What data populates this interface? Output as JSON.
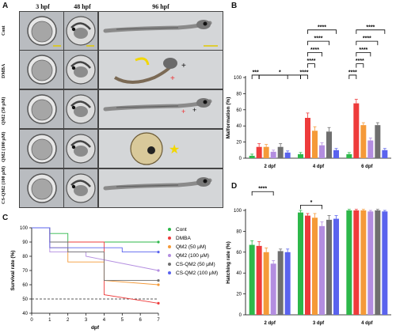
{
  "panelA": {
    "letter": "A",
    "columns": [
      "3 hpf",
      "48 hpf",
      "96 hpf"
    ],
    "rows": [
      "Cont",
      "DMBA",
      "QM2 (50 μM)",
      "QM2 (100 μM)",
      "CS-QM2 (100 μM)"
    ]
  },
  "panelB": {
    "letter": "B",
    "ylabel": "Malformation (%)",
    "yticks": [
      "0",
      "20",
      "40",
      "60",
      "80",
      "100"
    ],
    "ylim": [
      0,
      100
    ],
    "groups": [
      "2 dpf",
      "4 dpf",
      "6 dpf"
    ],
    "colors": [
      "#2db84a",
      "#ee3b3b",
      "#f59a38",
      "#b38de0",
      "#6f6f6f",
      "#5a63ee"
    ],
    "values": [
      [
        3,
        14,
        14,
        8,
        14,
        7
      ],
      [
        5,
        50,
        34,
        16,
        33,
        10
      ],
      [
        5,
        68,
        41,
        22,
        41,
        10
      ]
    ],
    "errors": [
      [
        2,
        4,
        3,
        2,
        4,
        2
      ],
      [
        2,
        6,
        5,
        3,
        5,
        2
      ],
      [
        2,
        5,
        3,
        3,
        3,
        2
      ]
    ],
    "sig_labels": [
      "***",
      "*",
      "****",
      "****",
      "****",
      "****",
      "****",
      "****",
      "****",
      "****",
      "****",
      "****"
    ]
  },
  "panelC": {
    "letter": "C",
    "xlabel": "dpf",
    "ylabel": "Survival rate (%)",
    "xticks": [
      "0",
      "1",
      "2",
      "3",
      "4",
      "5",
      "6",
      "7"
    ],
    "yticks": [
      "40",
      "50",
      "60",
      "70",
      "80",
      "90",
      "100"
    ],
    "legend": [
      "Cont",
      "DMBA",
      "QM2 (50 μM)",
      "QM2 (100 μM)",
      "CS-QM2 (50 μM)",
      "CS-QM2 (100 μM)"
    ],
    "colors": [
      "#2db84a",
      "#ee3b3b",
      "#f59a38",
      "#b38de0",
      "#6f6f6f",
      "#5a63ee"
    ]
  },
  "panelD": {
    "letter": "D",
    "ylabel": "Hatching rate (%)",
    "yticks": [
      "0",
      "20",
      "40",
      "60",
      "80",
      "100"
    ],
    "ylim": [
      0,
      100
    ],
    "groups": [
      "2 dpf",
      "3 dpf",
      "4 dpf"
    ],
    "values": [
      [
        67,
        66,
        60,
        49,
        61,
        60
      ],
      [
        98,
        95,
        93,
        85,
        91,
        92
      ],
      [
        100,
        100,
        100,
        99,
        100,
        99
      ]
    ],
    "errors": [
      [
        4,
        4,
        4,
        3,
        2,
        3
      ],
      [
        2,
        2,
        4,
        4,
        4,
        3
      ],
      [
        1,
        1,
        1,
        1,
        1,
        1
      ]
    ],
    "sig_labels": [
      "****",
      "*"
    ]
  },
  "chart_data": [
    {
      "type": "bar",
      "ylabel": "Malformation (%)",
      "ylim": [
        0,
        100
      ],
      "categories": [
        "2 dpf",
        "4 dpf",
        "6 dpf"
      ],
      "series": [
        {
          "values": [
            3,
            5,
            5
          ]
        },
        {
          "values": [
            14,
            50,
            68
          ]
        },
        {
          "values": [
            14,
            34,
            41
          ]
        },
        {
          "values": [
            8,
            16,
            22
          ]
        },
        {
          "values": [
            14,
            33,
            41
          ]
        },
        {
          "values": [
            7,
            10,
            10
          ]
        }
      ]
    },
    {
      "type": "line",
      "xlabel": "dpf",
      "ylabel": "Survival rate (%)",
      "xlim": [
        0,
        7
      ],
      "ylim": [
        40,
        100
      ],
      "series": [
        {
          "name": "Cont",
          "x": [
            0,
            1,
            1,
            2,
            2,
            7
          ],
          "y": [
            100,
            100,
            96,
            96,
            90,
            90
          ]
        },
        {
          "name": "DMBA",
          "x": [
            0,
            1,
            1,
            4,
            4,
            7
          ],
          "y": [
            100,
            100,
            90,
            90,
            53,
            47
          ]
        },
        {
          "name": "QM2 (50 μM)",
          "x": [
            0,
            1,
            1,
            2,
            2,
            4,
            4,
            7
          ],
          "y": [
            100,
            100,
            86,
            86,
            76,
            76,
            63,
            60
          ]
        },
        {
          "name": "QM2 (100 μM)",
          "x": [
            0,
            1,
            1,
            3,
            3,
            7
          ],
          "y": [
            100,
            100,
            83,
            83,
            80,
            70
          ]
        },
        {
          "name": "CS-QM2 (50 μM)",
          "x": [
            0,
            1,
            1,
            2,
            2,
            4,
            4,
            7
          ],
          "y": [
            100,
            100,
            90,
            90,
            83,
            83,
            63,
            63
          ]
        },
        {
          "name": "CS-QM2 (100 μM)",
          "x": [
            0,
            1,
            1,
            5,
            5,
            7
          ],
          "y": [
            100,
            100,
            86,
            86,
            83,
            83
          ]
        }
      ],
      "reference_line_y": 50
    },
    {
      "type": "bar",
      "ylabel": "Hatching rate (%)",
      "ylim": [
        0,
        100
      ],
      "categories": [
        "2 dpf",
        "3 dpf",
        "4 dpf"
      ],
      "series": [
        {
          "values": [
            67,
            98,
            100
          ]
        },
        {
          "values": [
            66,
            95,
            100
          ]
        },
        {
          "values": [
            60,
            93,
            100
          ]
        },
        {
          "values": [
            49,
            85,
            99
          ]
        },
        {
          "values": [
            61,
            91,
            100
          ]
        },
        {
          "values": [
            60,
            92,
            99
          ]
        }
      ]
    }
  ]
}
